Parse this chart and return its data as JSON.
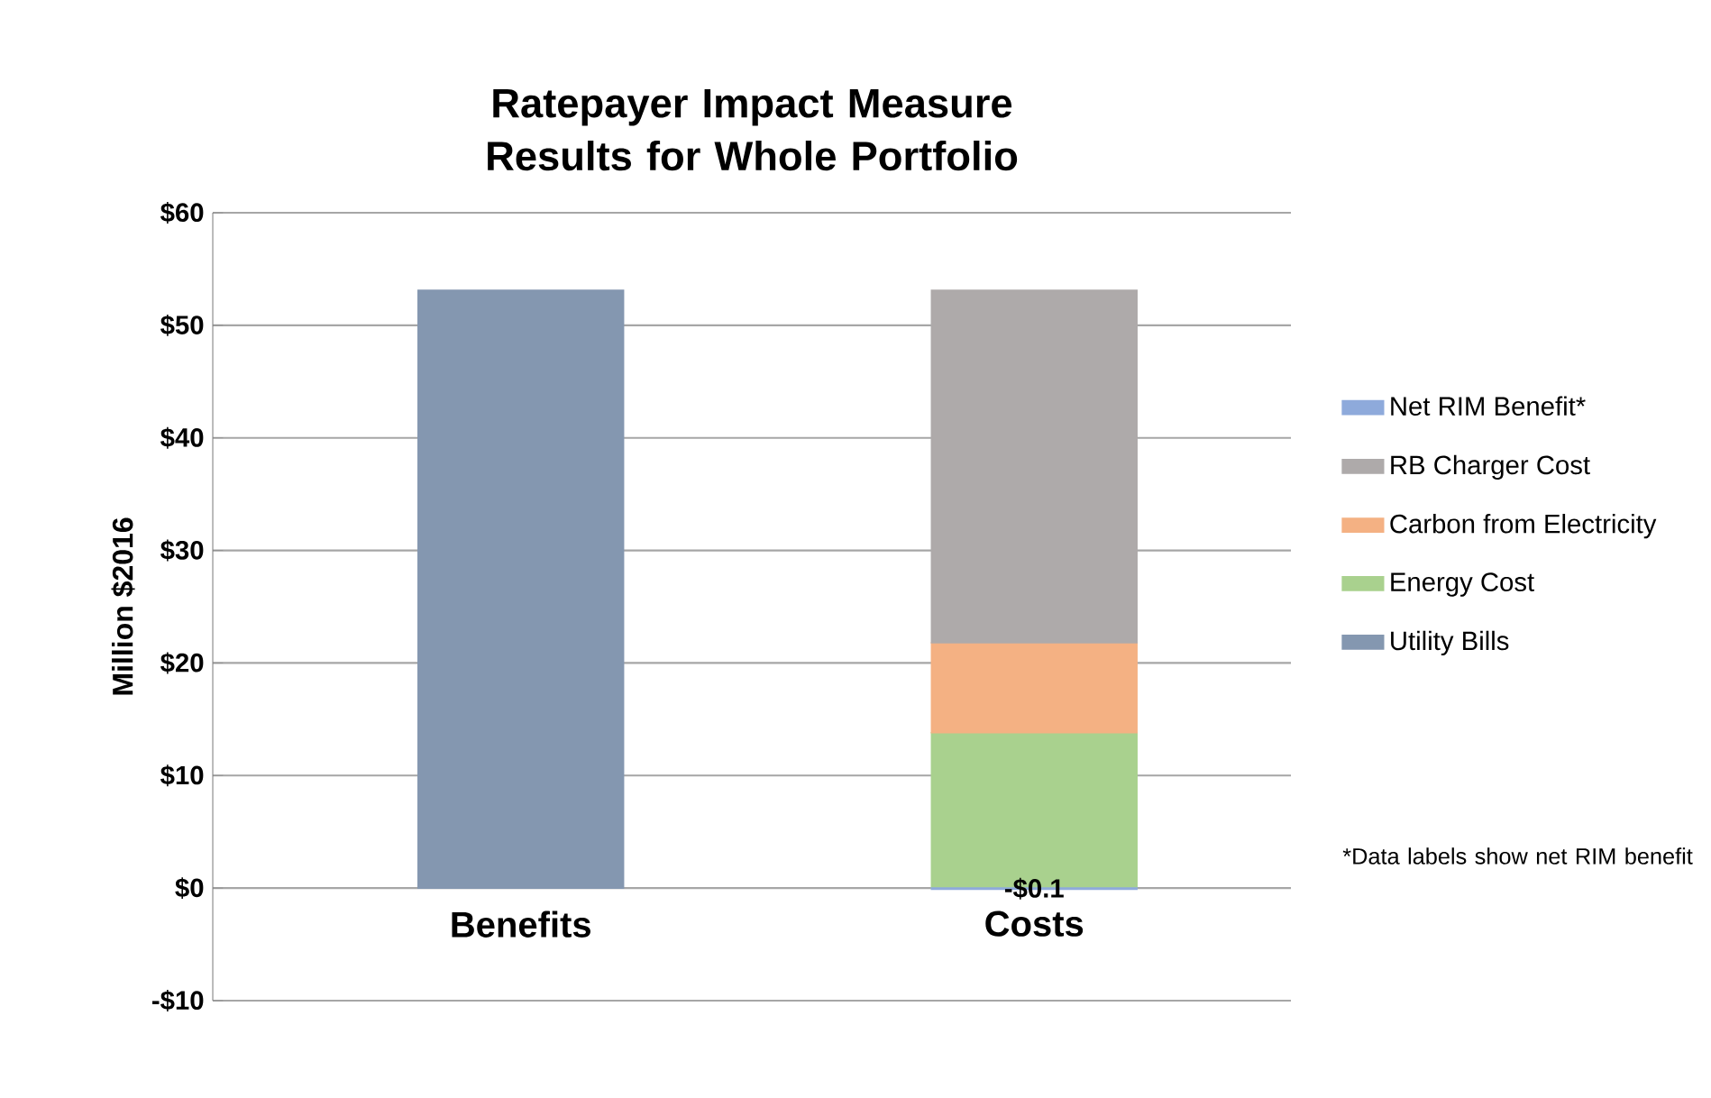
{
  "chart_data": {
    "type": "bar",
    "title": "Ratepayer Impact Measure Results for Whole Portfolio",
    "ylabel": "Million $2016",
    "categories": [
      "Benefits",
      "Costs"
    ],
    "stacked": true,
    "series": [
      {
        "name": "Utility Bills",
        "color": "#8497b0",
        "values": [
          53.1,
          null
        ]
      },
      {
        "name": "Energy Cost",
        "color": "#a9d18e",
        "values": [
          null,
          13.8
        ]
      },
      {
        "name": "Carbon from Electricity",
        "color": "#f4b183",
        "values": [
          null,
          8.0
        ]
      },
      {
        "name": "RB Charger Cost",
        "color": "#aeaaaa",
        "values": [
          null,
          31.3
        ]
      },
      {
        "name": "Net RIM Benefit*",
        "color": "#8eaadb",
        "values": [
          null,
          -0.1
        ],
        "value_labels": [
          null,
          "-$0.1"
        ]
      }
    ],
    "ylim": [
      -10,
      60
    ],
    "yticks": [
      {
        "value": -10,
        "label": "-$10"
      },
      {
        "value": 0,
        "label": "$0"
      },
      {
        "value": 10,
        "label": "$10"
      },
      {
        "value": 20,
        "label": "$20"
      },
      {
        "value": 30,
        "label": "$30"
      },
      {
        "value": 40,
        "label": "$40"
      },
      {
        "value": 50,
        "label": "$50"
      },
      {
        "value": 60,
        "label": "$60"
      }
    ],
    "grid": "y",
    "legend": "right",
    "annotations": [
      "*Data labels show net RIM benefit"
    ]
  }
}
